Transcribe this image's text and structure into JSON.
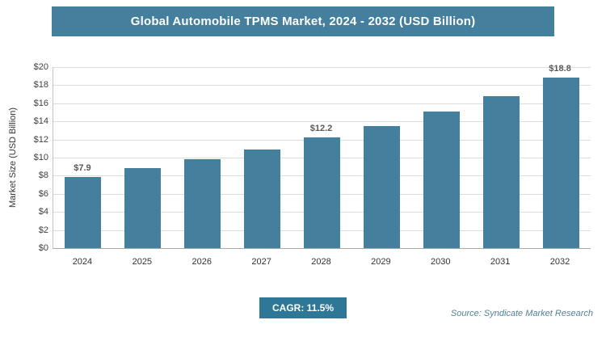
{
  "chart_data": {
    "type": "bar",
    "title": "Global Automobile TPMS Market, 2024 - 2032 (USD Billion)",
    "xlabel": "",
    "ylabel": "Market Size (USD Billion)",
    "categories": [
      "2024",
      "2025",
      "2026",
      "2027",
      "2028",
      "2029",
      "2030",
      "2031",
      "2032"
    ],
    "values": [
      7.9,
      8.8,
      9.8,
      10.9,
      12.2,
      13.5,
      15.1,
      16.8,
      18.8
    ],
    "labeled_points": {
      "2024": "$7.9",
      "2028": "$12.2",
      "2032": "$18.8"
    },
    "ylim": [
      0,
      20
    ],
    "ytick_step": 2,
    "ytick_labels": [
      "$0",
      "$2",
      "$4",
      "$6",
      "$8",
      "$10",
      "$12",
      "$14",
      "$16",
      "$18",
      "$20"
    ],
    "grid": true,
    "legend": "none",
    "bar_color": "#447f9d"
  },
  "footer": {
    "cagr_label": "CAGR: 11.5%",
    "source": "Source: Syndicate Market Research"
  },
  "colors": {
    "accent": "#447f9d",
    "bar": "#447f9d",
    "badge": "#2f7796",
    "gridline": "#dcdcdc"
  }
}
